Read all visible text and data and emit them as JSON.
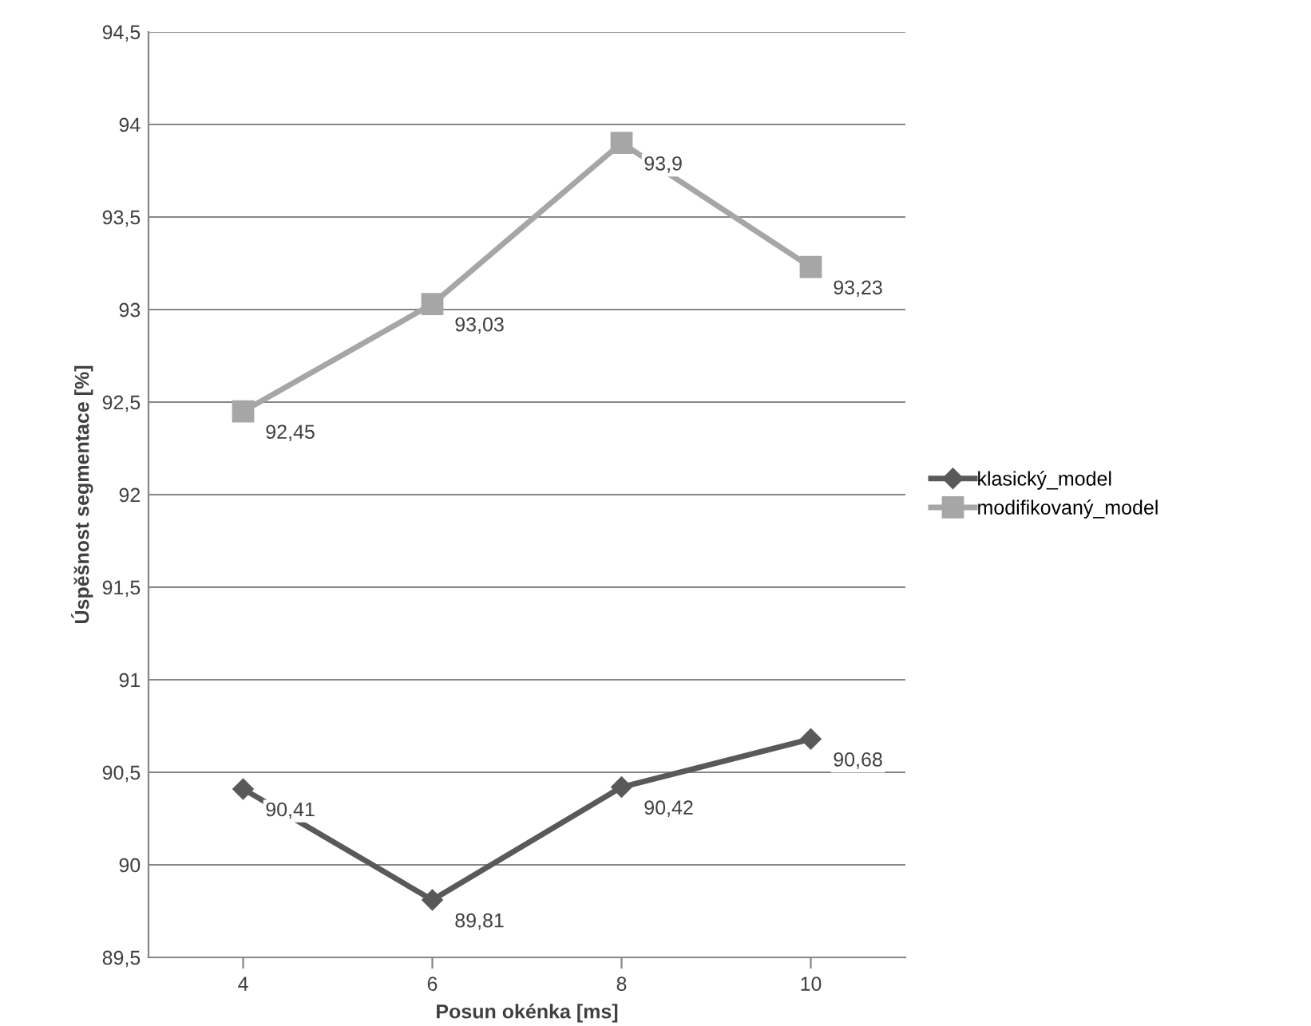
{
  "chart_data": {
    "type": "line",
    "xlabel": "Posun okénka [ms]",
    "ylabel": "Úspěšnost segmentace [%]",
    "categories": [
      "4",
      "6",
      "8",
      "10"
    ],
    "series": [
      {
        "name": "klasický_model",
        "color": "#595959",
        "marker": "diamond",
        "values": [
          90.41,
          89.81,
          90.42,
          90.68
        ],
        "value_labels": [
          "90,41",
          "89,81",
          "90,42",
          "90,68"
        ]
      },
      {
        "name": "modifikovaný_model",
        "color": "#a6a6a6",
        "marker": "square",
        "values": [
          92.45,
          93.03,
          93.9,
          93.23
        ],
        "value_labels": [
          "92,45",
          "93,03",
          "93,9",
          "93,23"
        ]
      }
    ],
    "ylim": [
      89.5,
      94.5
    ],
    "yticks": [
      {
        "value": 89.5,
        "label": "89,5"
      },
      90,
      {
        "value": 90.5,
        "label": "90,5"
      },
      91,
      {
        "value": 91.5,
        "label": "91,5"
      },
      92,
      {
        "value": 92.5,
        "label": "92,5"
      },
      93,
      {
        "value": 93.5,
        "label": "93,5"
      },
      94,
      {
        "value": 94.5,
        "label": "94,5"
      }
    ],
    "grid": "y",
    "legend": "right",
    "line_style": "solid"
  }
}
